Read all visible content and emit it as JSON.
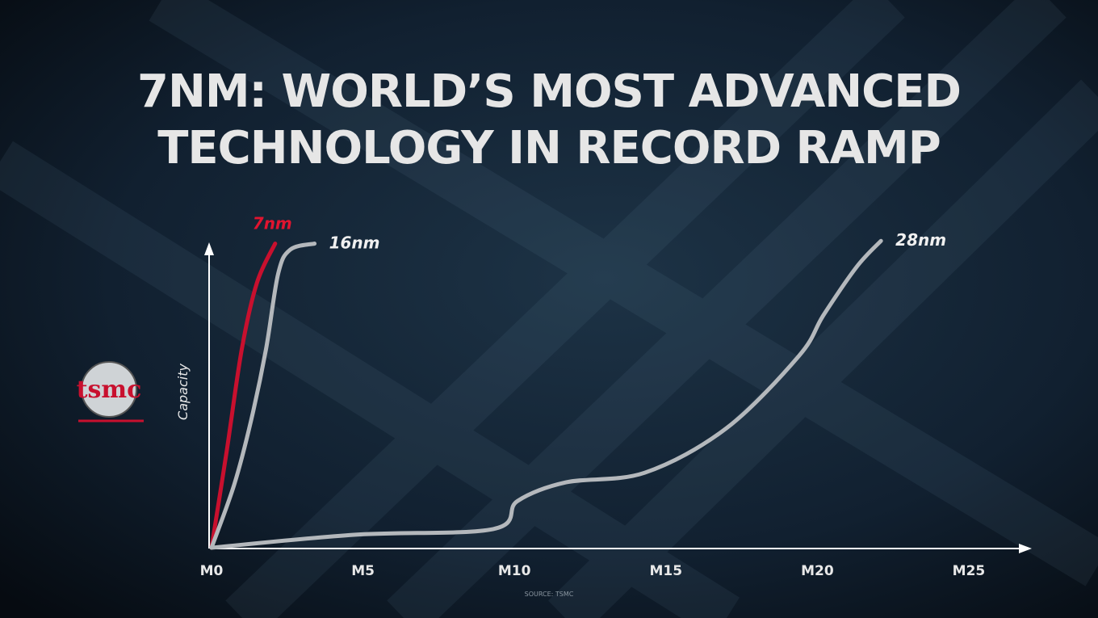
{
  "logo": "tsmc",
  "chart_data": {
    "type": "line",
    "title": [
      "7NM: WORLD’S MOST ADVANCED",
      "TECHNOLOGY IN RECORD RAMP"
    ],
    "y_label": "Capacity",
    "source": "SOURCE: TSMC",
    "xlim": [
      0,
      27
    ],
    "ylim": [
      0,
      110
    ],
    "xticks": [
      {
        "value": 0,
        "label": "M0"
      },
      {
        "value": 5,
        "label": "M5"
      },
      {
        "value": 10,
        "label": "M10"
      },
      {
        "value": 15,
        "label": "M15"
      },
      {
        "value": 20,
        "label": "M20"
      },
      {
        "value": 25,
        "label": "M25"
      }
    ],
    "grid": false,
    "series": [
      {
        "name": "7nm",
        "color": "#c8102e",
        "x": [
          0,
          0.5,
          1,
          1.5,
          2.1
        ],
        "values": [
          0,
          32,
          66,
          88,
          101
        ]
      },
      {
        "name": "16nm",
        "color": "#b4b8bc",
        "x": [
          0,
          0.75,
          1.3,
          1.8,
          2.2,
          2.6,
          3.4
        ],
        "values": [
          0,
          21,
          42,
          66,
          91,
          99,
          101
        ]
      },
      {
        "name": "28nm",
        "color": "#b4b8bc",
        "x": [
          0,
          4.7,
          9.3,
          10.1,
          11.7,
          14.3,
          17,
          19.4,
          20.2,
          21.3,
          22.1
        ],
        "values": [
          0,
          4.3,
          6.2,
          15.5,
          21.7,
          24.9,
          39.7,
          63.8,
          77.2,
          93.3,
          101.9
        ]
      }
    ]
  }
}
